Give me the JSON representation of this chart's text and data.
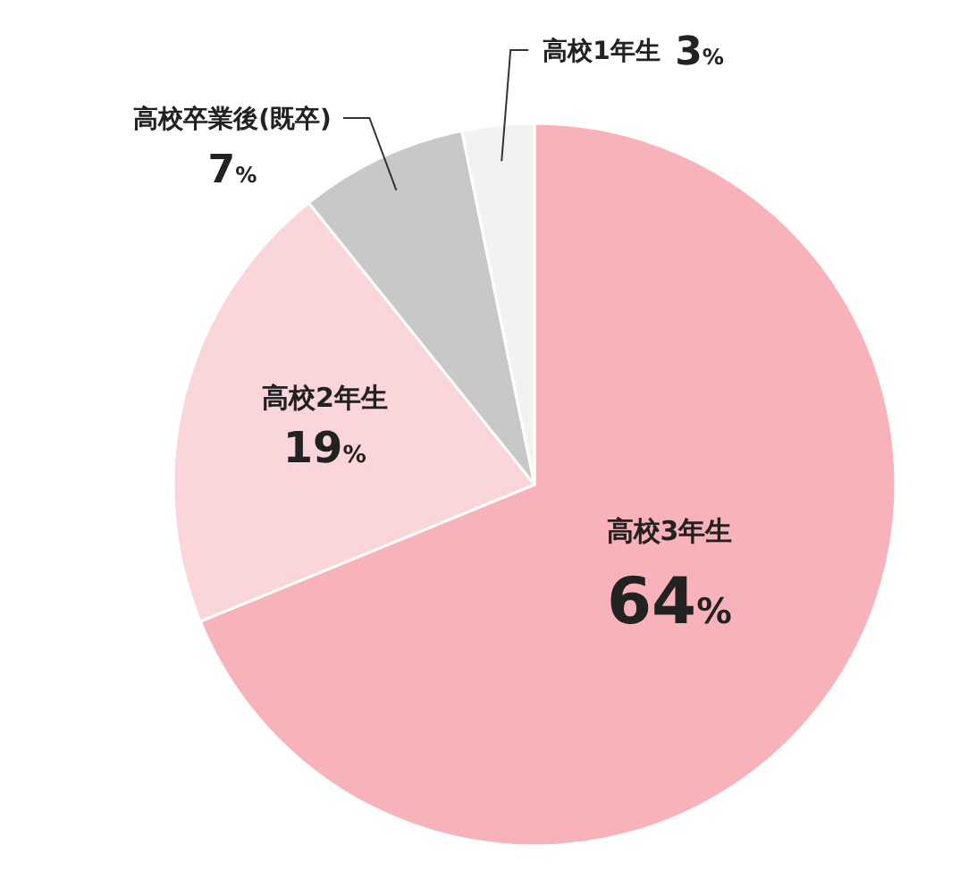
{
  "chart_data": {
    "type": "pie",
    "categories": [
      "高校3年生",
      "高校2年生",
      "高校卒業後(既卒)",
      "高校1年生"
    ],
    "values": [
      64,
      19,
      7,
      3
    ],
    "colors": [
      "#f7b3b9",
      "#fad5d9",
      "#c8c8c8",
      "#f2f2f2"
    ],
    "value_labels": [
      "64%",
      "19%",
      "7%",
      "3%"
    ]
  }
}
